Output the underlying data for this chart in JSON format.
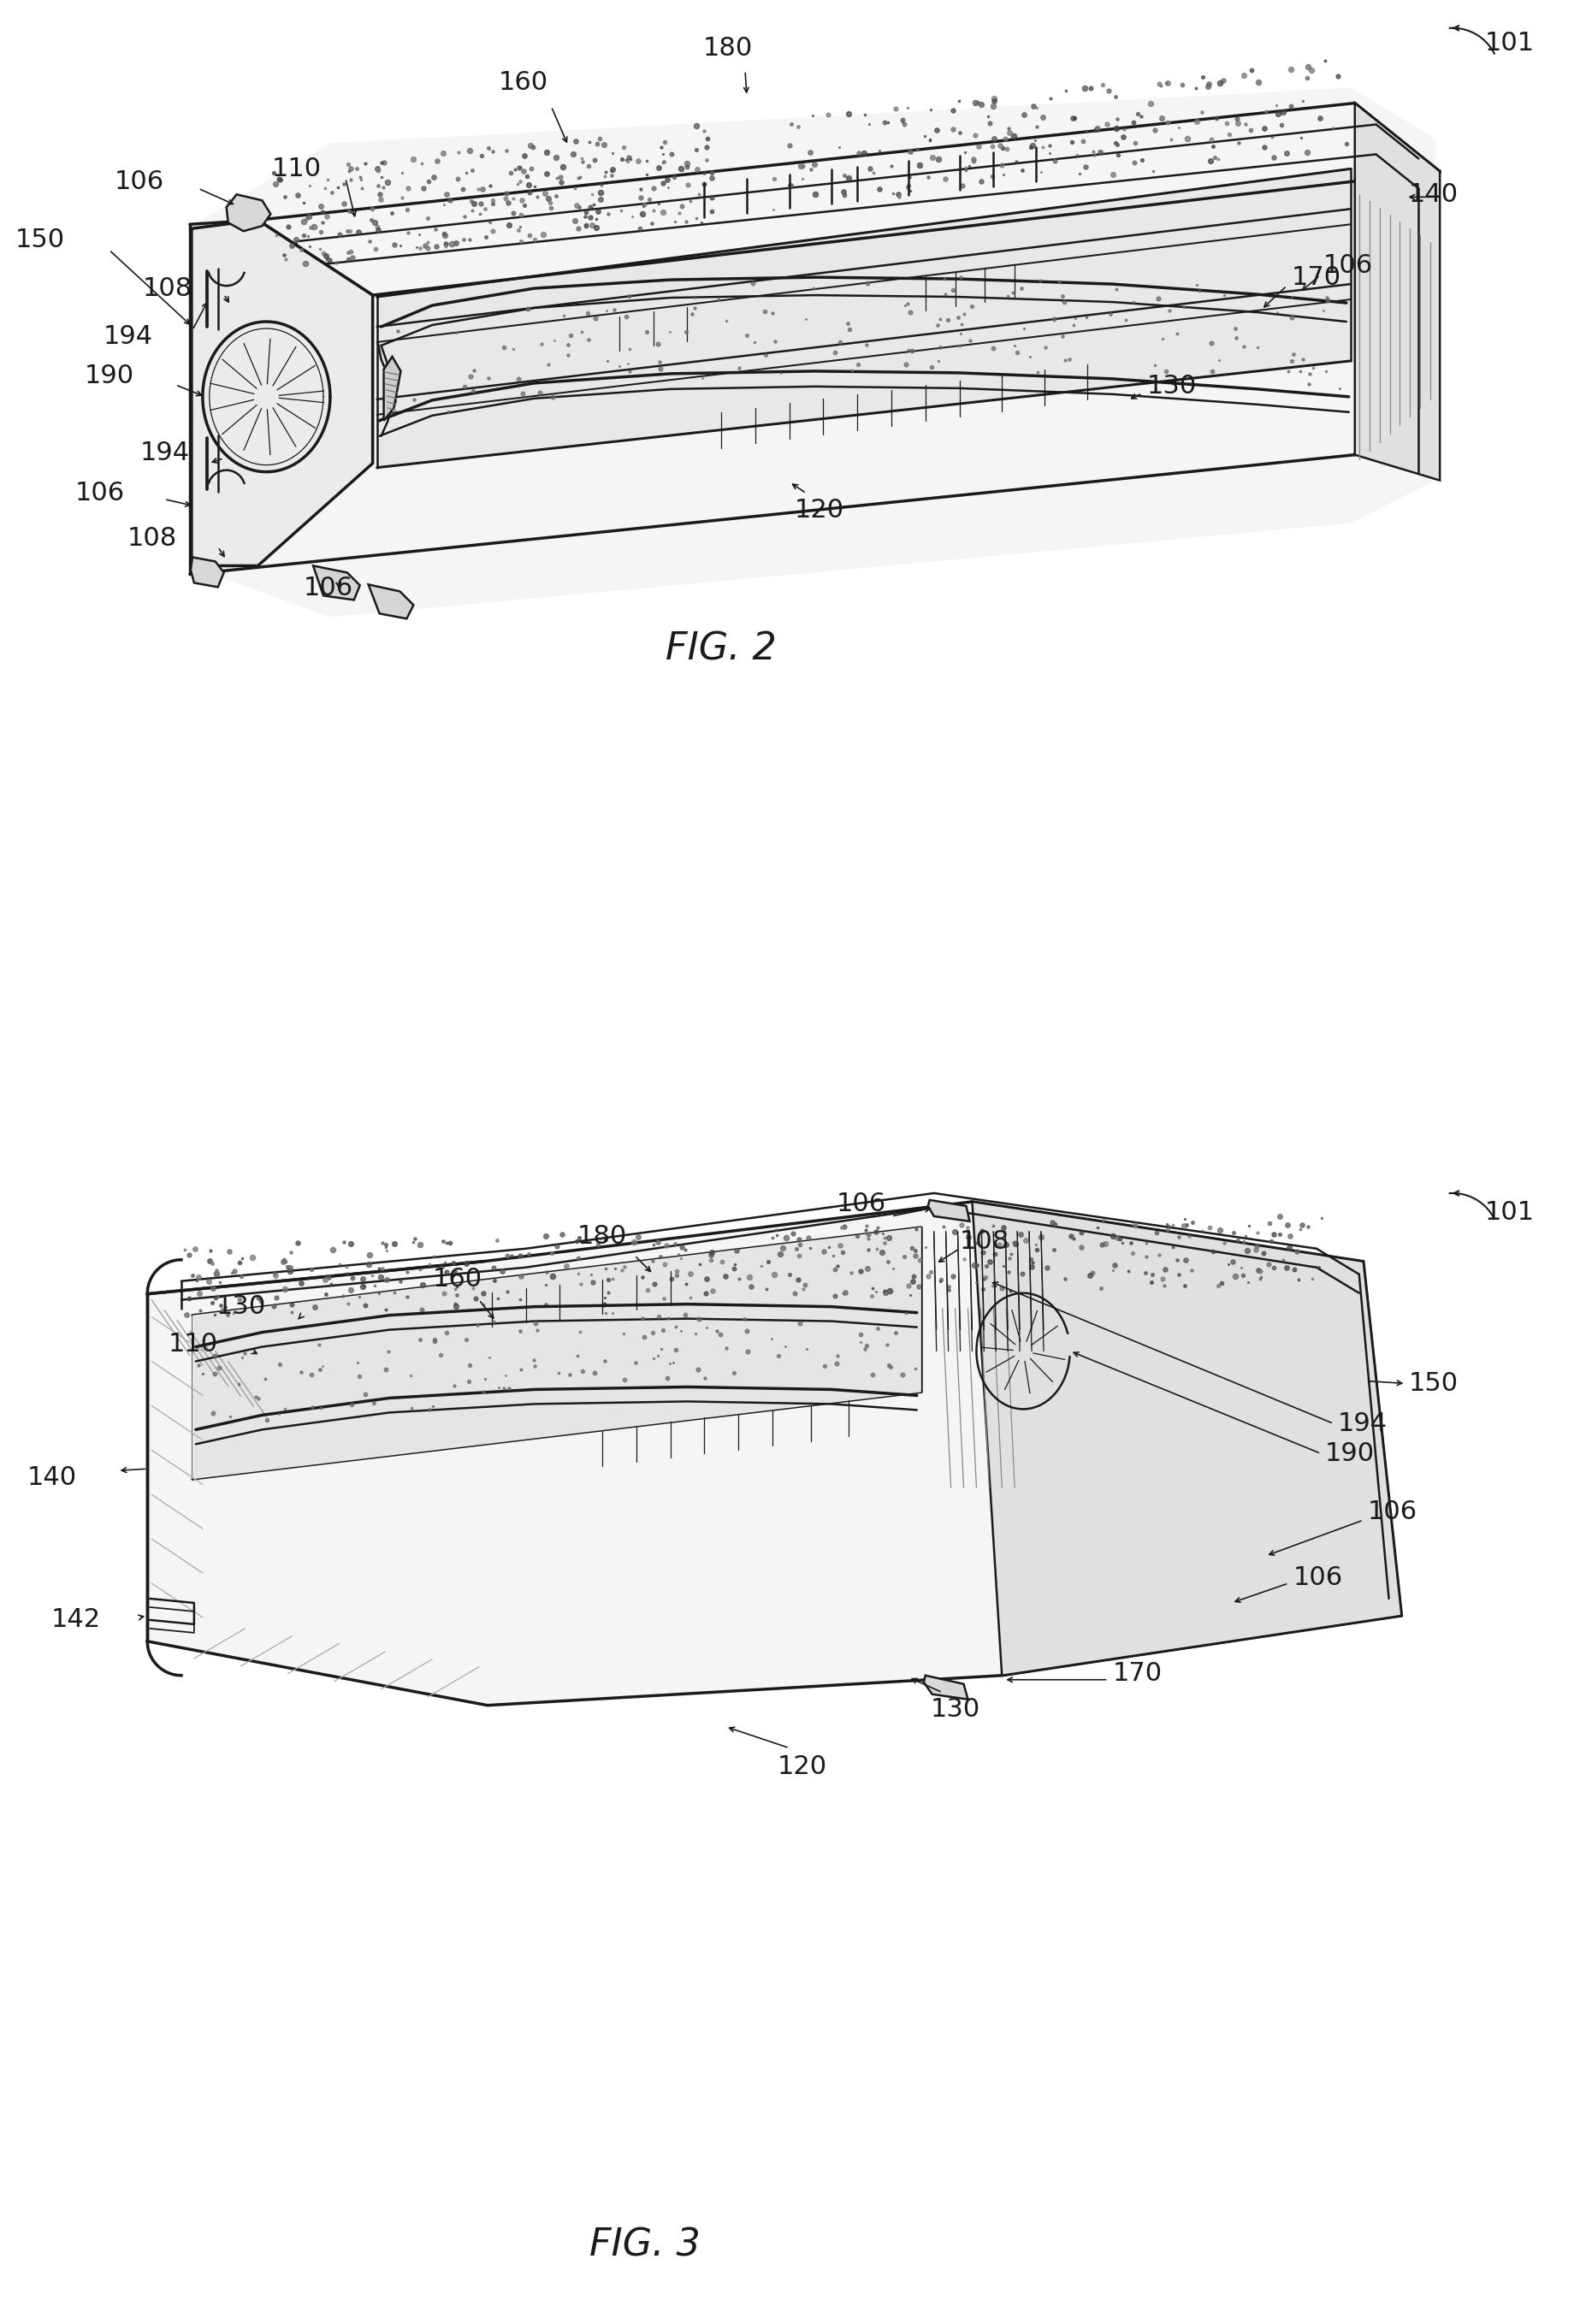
{
  "fig_width": 18.47,
  "fig_height": 27.17,
  "background_color": "#ffffff",
  "line_color": "#1a1a1a",
  "line_width": 1.8,
  "thin_line": 0.9,
  "thick_line": 2.5,
  "fig2_title": "FIG. 2",
  "fig3_title": "FIG. 3",
  "title_fontsize": 32,
  "label_fontsize": 22
}
